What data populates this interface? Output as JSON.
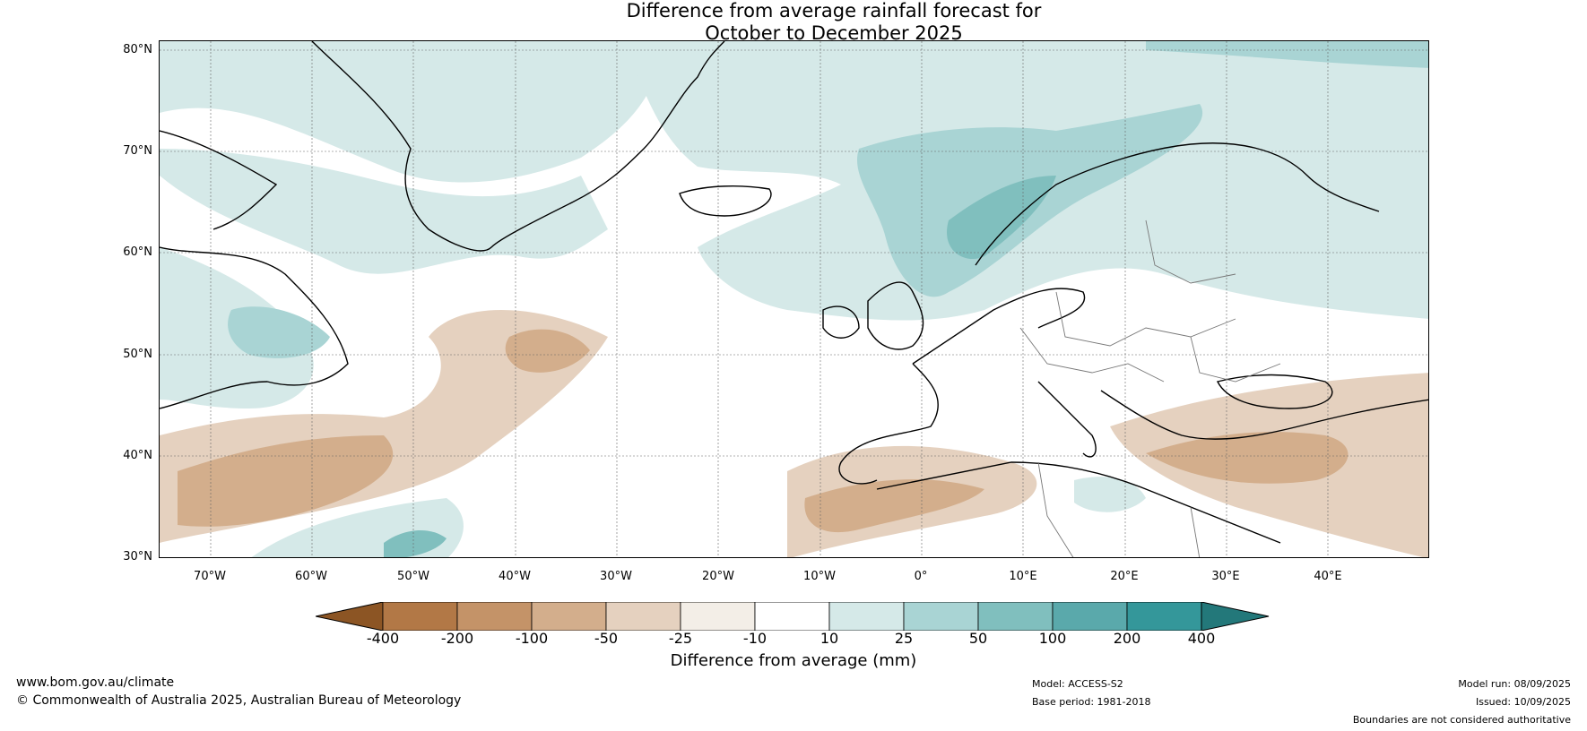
{
  "title_line1": "Difference from average rainfall forecast for",
  "title_line2": "October to December 2025",
  "lat_labels": [
    "80°N",
    "70°N",
    "60°N",
    "50°N",
    "40°N",
    "30°N"
  ],
  "lon_labels": [
    "70°W",
    "60°W",
    "50°W",
    "40°W",
    "30°W",
    "20°W",
    "10°W",
    "0°",
    "10°E",
    "20°E",
    "30°E",
    "40°E"
  ],
  "colorbar": {
    "ticks": [
      "-400",
      "-200",
      "-100",
      "-50",
      "-25",
      "-10",
      "10",
      "25",
      "50",
      "100",
      "200",
      "400"
    ],
    "colors": [
      "#8c5524",
      "#b27846",
      "#c49368",
      "#d3ae8c",
      "#e5d1bf",
      "#f3eee7",
      "#ffffff",
      "#d5e9e8",
      "#a9d4d4",
      "#80bfbe",
      "#5aa9ab",
      "#34979a",
      "#23787a"
    ],
    "label": "Difference from average (mm)"
  },
  "footer": {
    "url": "www.bom.gov.au/climate",
    "copyright": "© Commonwealth of Australia 2025, Australian Bureau of Meteorology",
    "model": "Model: ACCESS-S2",
    "base_period": "Base period: 1981-2018",
    "model_run": "Model run: 08/09/2025",
    "issued": "Issued: 10/09/2025",
    "boundaries": "Boundaries are not considered authoritative"
  }
}
